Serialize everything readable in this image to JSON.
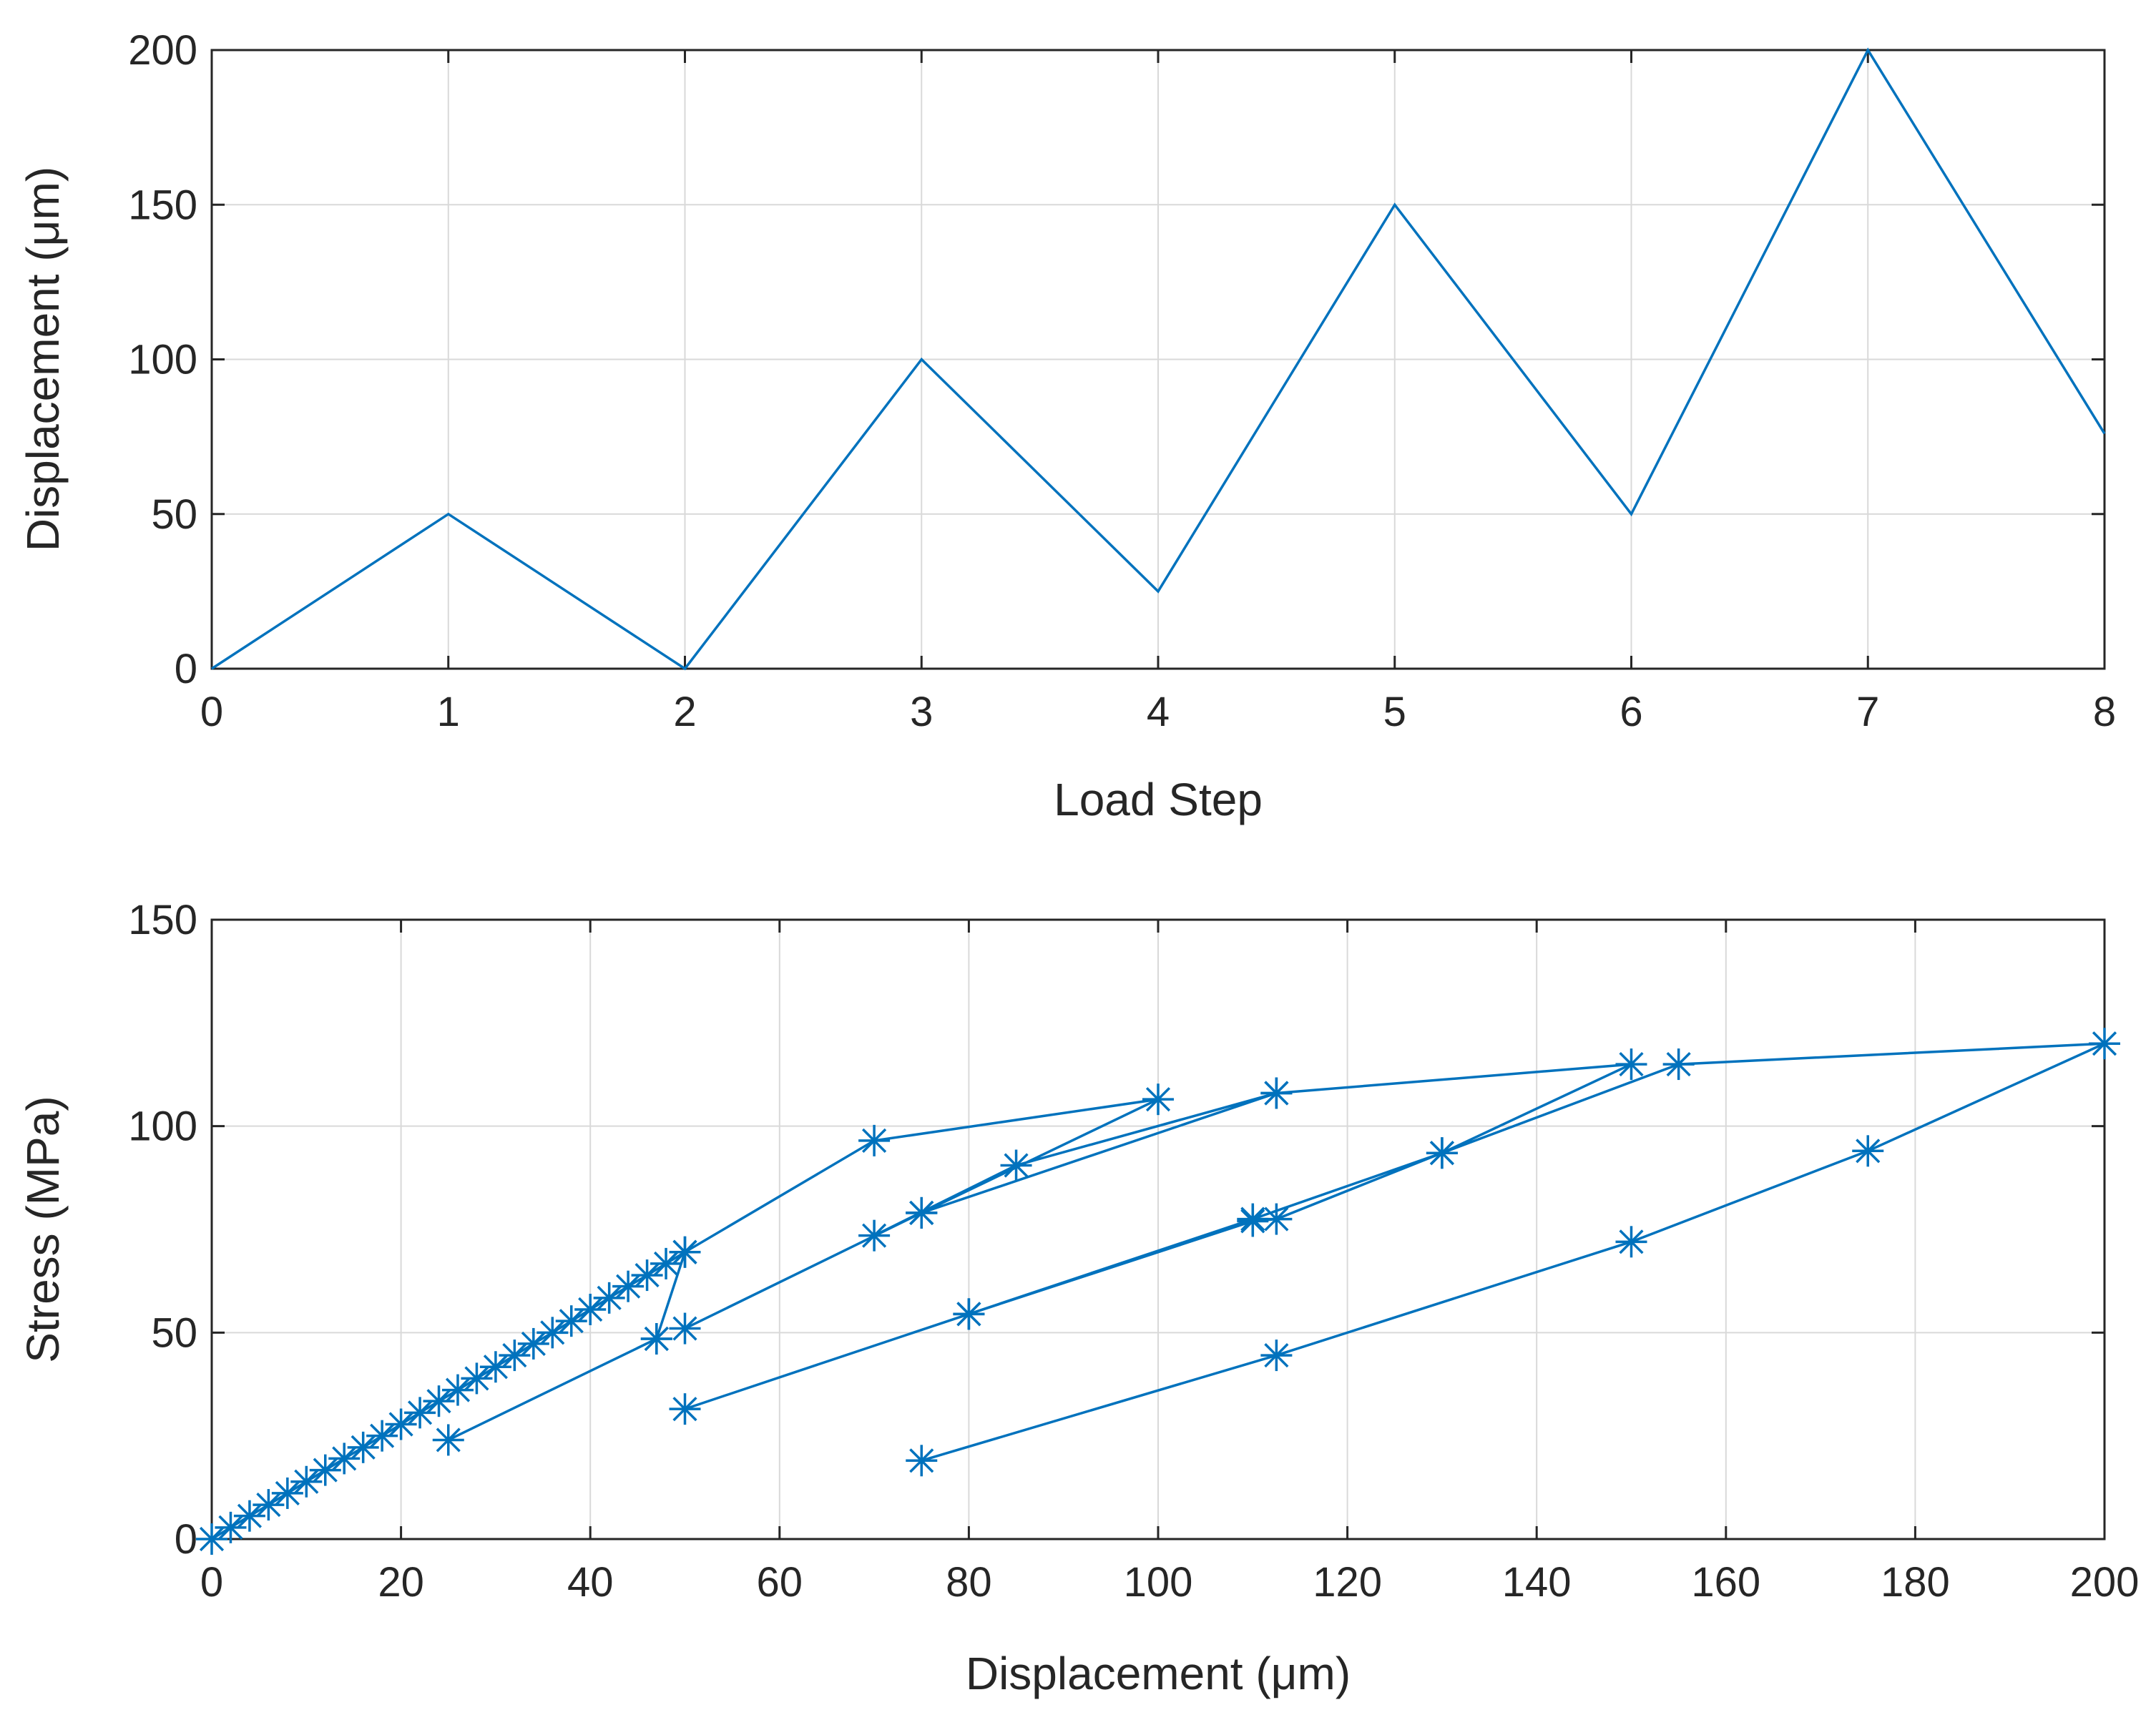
{
  "colors": {
    "series": "#0072BD"
  },
  "chart_data": [
    {
      "type": "line",
      "title": "",
      "xlabel": "Load Step",
      "ylabel": "Displacement (μm)",
      "xlim": [
        0,
        8
      ],
      "ylim": [
        0,
        200
      ],
      "xticks": [
        0,
        1,
        2,
        3,
        4,
        5,
        6,
        7,
        8
      ],
      "yticks": [
        0,
        50,
        100,
        150,
        200
      ],
      "grid": true,
      "marker": "none",
      "x": [
        0,
        1,
        2,
        3,
        4,
        5,
        6,
        7,
        8
      ],
      "y": [
        0,
        50,
        0,
        100,
        25,
        150,
        50,
        200,
        76
      ]
    },
    {
      "type": "line",
      "title": "",
      "xlabel": "Displacement (μm)",
      "ylabel": "Stress (MPa)",
      "xlim": [
        0,
        200
      ],
      "ylim": [
        0,
        150
      ],
      "xticks": [
        0,
        20,
        40,
        60,
        80,
        100,
        120,
        140,
        160,
        180,
        200
      ],
      "yticks": [
        0,
        50,
        100,
        150
      ],
      "grid": true,
      "marker": "asterisk",
      "x": [
        0,
        2,
        4,
        6,
        8,
        10,
        12,
        14,
        16,
        18,
        20,
        22,
        24,
        26,
        28,
        30,
        32,
        34,
        36,
        38,
        40,
        42,
        44,
        46,
        48,
        50,
        47,
        25,
        47,
        50,
        70,
        100,
        75,
        50,
        75,
        70,
        85,
        112.5,
        75,
        112.5,
        150,
        130,
        112.5,
        110,
        80,
        50,
        80,
        110,
        130,
        155,
        200,
        175,
        150,
        112.5,
        75
      ],
      "y": [
        0,
        2.8,
        5.6,
        8.3,
        11.1,
        13.9,
        16.7,
        19.5,
        22.2,
        25,
        27.8,
        30.6,
        33.4,
        36.1,
        38.9,
        41.7,
        44.5,
        47.3,
        50,
        52.8,
        55.6,
        58.4,
        61.2,
        63.9,
        66.7,
        69.5,
        48.5,
        24,
        48.5,
        69.5,
        96.5,
        106.5,
        79,
        51,
        79,
        73.5,
        90.5,
        108,
        79,
        108,
        115,
        93.5,
        77.5,
        77,
        54.5,
        31.5,
        54.5,
        77.5,
        93.5,
        115,
        120,
        94,
        72,
        44.5,
        19
      ]
    }
  ]
}
